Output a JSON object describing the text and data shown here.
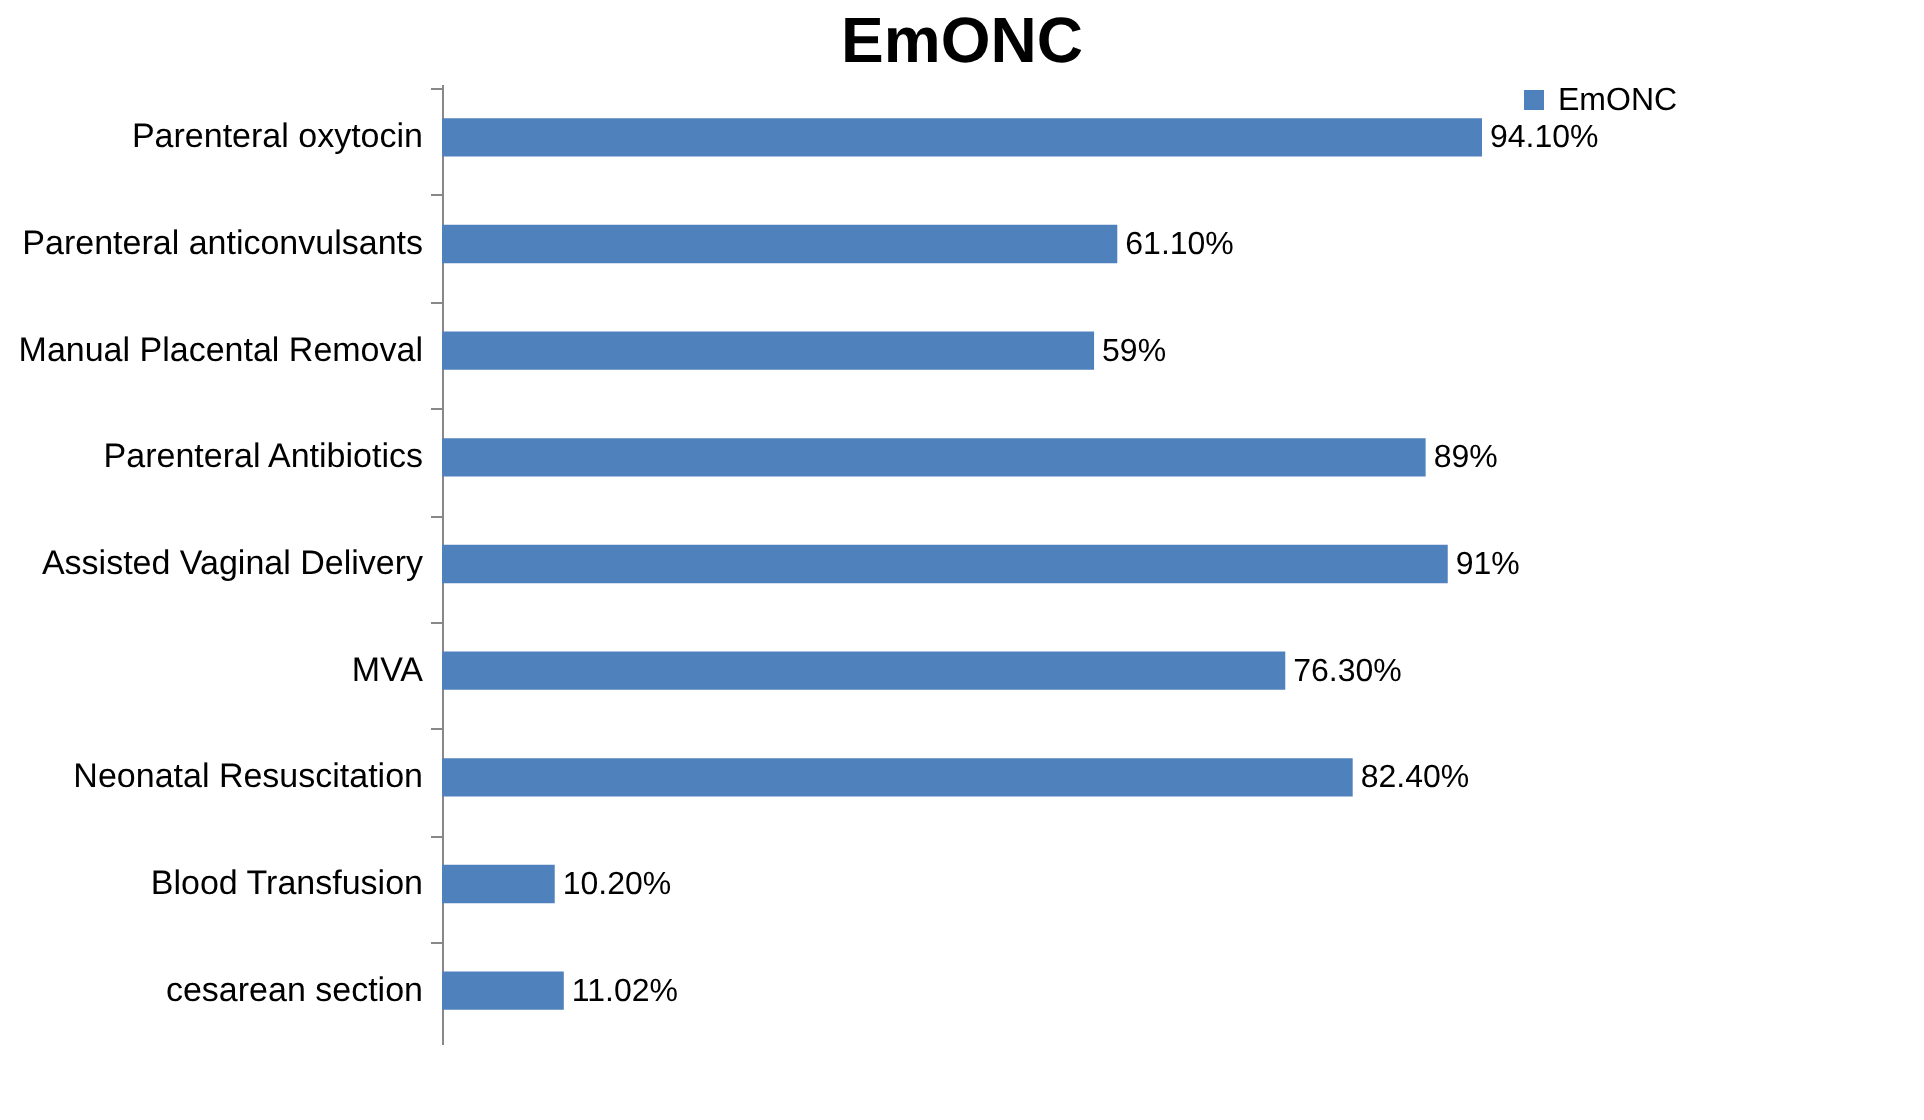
{
  "chart_data": {
    "type": "bar",
    "orientation": "horizontal",
    "title": "EmONC",
    "categories": [
      "Parenteral oxytocin",
      "Parenteral anticonvulsants",
      "Manual Placental Removal",
      "Parenteral Antibiotics",
      "Assisted Vaginal Delivery",
      "MVA",
      "Neonatal Resuscitation",
      "Blood Transfusion",
      "cesarean section"
    ],
    "series": [
      {
        "name": "EmONC",
        "color": "#4f81bd",
        "values": [
          94.1,
          61.1,
          59,
          89,
          91,
          76.3,
          82.4,
          10.2,
          11.02
        ],
        "value_labels": [
          "94.10%",
          "61.10%",
          "59%",
          "89%",
          "91%",
          "76.30%",
          "82.40%",
          "10.20%",
          "11.02%"
        ]
      }
    ],
    "tick_labels": "y",
    "legend": "right"
  }
}
